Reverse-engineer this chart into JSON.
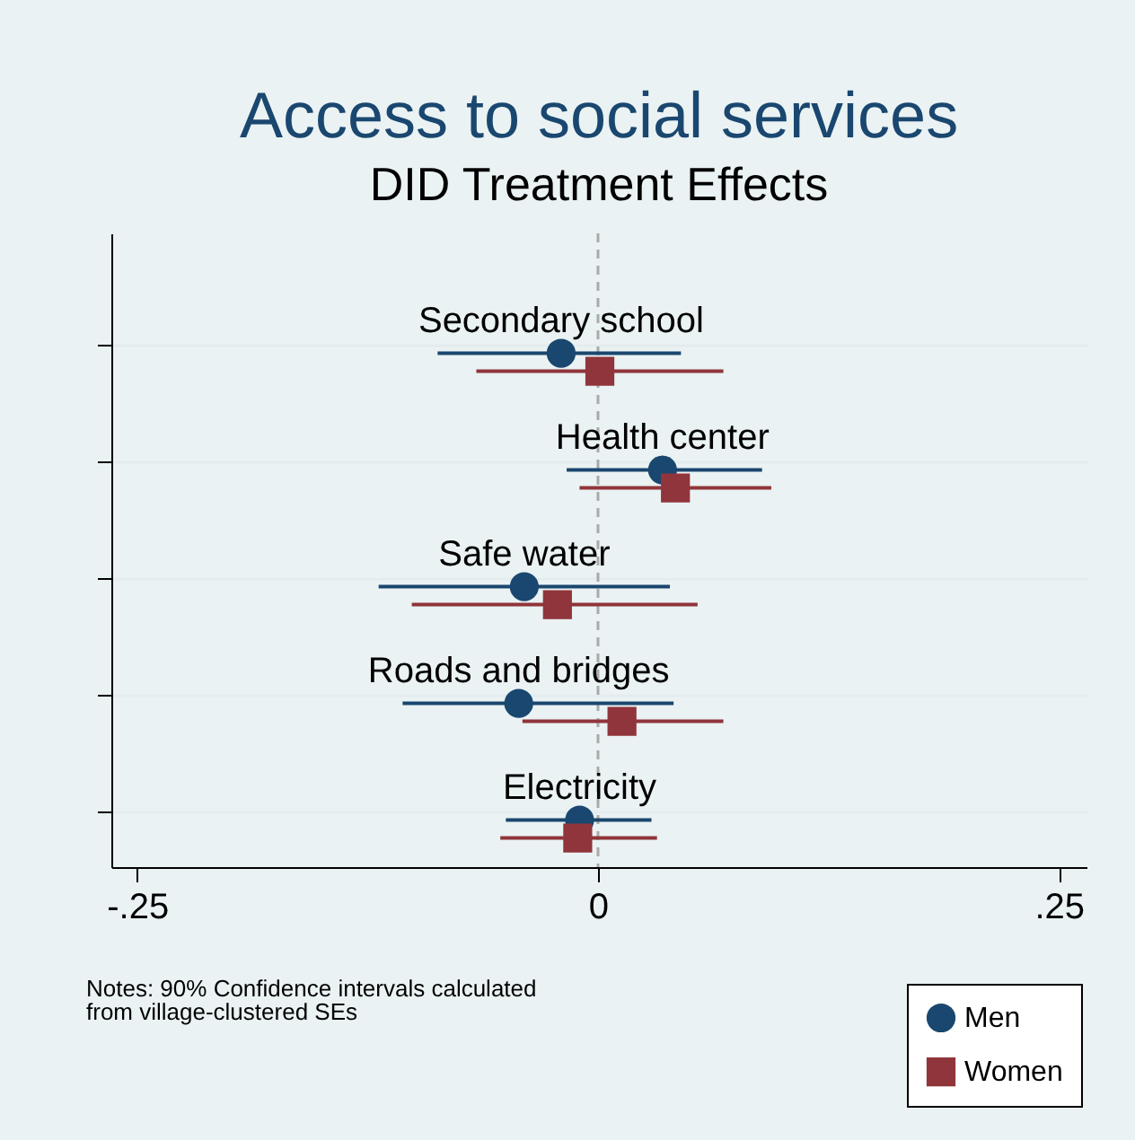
{
  "chart_data": {
    "type": "scatter",
    "orientation": "horizontal",
    "title": "Access to social services",
    "subtitle": "DID Treatment Effects",
    "categories": [
      "Secondary school",
      "Health center",
      "Safe water",
      "Roads and bridges",
      "Electricity"
    ],
    "series": [
      {
        "name": "Men",
        "color": "#1a476f",
        "marker": "circle",
        "values": [
          -0.02,
          0.035,
          -0.04,
          -0.043,
          -0.01
        ],
        "errors": [
          [
            -0.087,
            0.045
          ],
          [
            -0.017,
            0.089
          ],
          [
            -0.119,
            0.039
          ],
          [
            -0.106,
            0.041
          ],
          [
            -0.05,
            0.029
          ]
        ]
      },
      {
        "name": "Women",
        "color": "#90353b",
        "marker": "square",
        "values": [
          0.001,
          0.042,
          -0.022,
          0.013,
          -0.011
        ],
        "errors": [
          [
            -0.066,
            0.068
          ],
          [
            -0.01,
            0.094
          ],
          [
            -0.101,
            0.054
          ],
          [
            -0.041,
            0.068
          ],
          [
            -0.053,
            0.032
          ]
        ]
      }
    ],
    "xlim": [
      -0.264,
      0.265
    ],
    "xticks": [
      {
        "value": -0.25,
        "label": "-.25"
      },
      {
        "value": 0,
        "label": "0"
      },
      {
        "value": 0.25,
        "label": ".25"
      }
    ],
    "ref_lines": [
      {
        "axis": "x",
        "value": 0,
        "color": "#aaaaaa",
        "line_style": "dashed"
      }
    ],
    "grid": "y",
    "legend": "bottom right",
    "tick_labels": "x",
    "annotations": [
      "Notes: 90% Confidence intervals calculated\nfrom village-clustered SEs"
    ]
  }
}
